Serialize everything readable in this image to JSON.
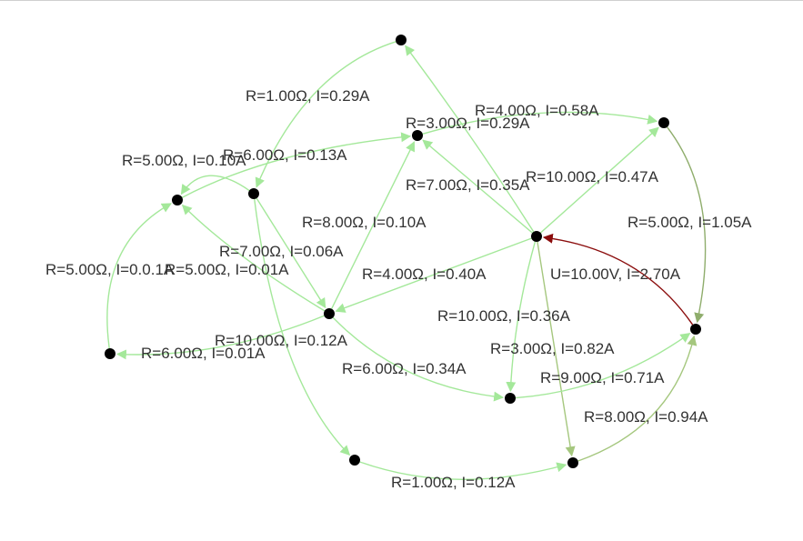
{
  "colors": {
    "edge_light": "#a4e89a",
    "edge_medium": "#a5c77e",
    "edge_olive": "#8fad6c",
    "source": "#8b0d0d",
    "node": "#000000",
    "label": "#333333"
  },
  "nodes": [
    {
      "id": "n1"
    },
    {
      "id": "n2"
    },
    {
      "id": "n3"
    },
    {
      "id": "n4"
    },
    {
      "id": "n5"
    },
    {
      "id": "n6"
    },
    {
      "id": "n7"
    },
    {
      "id": "n8"
    },
    {
      "id": "n9"
    },
    {
      "id": "n10"
    },
    {
      "id": "n11"
    },
    {
      "id": "n12"
    },
    {
      "id": "n13"
    }
  ],
  "edges": [
    {
      "from": "n1",
      "to": "n4",
      "label": "R=1.00Ω, I=0.29A",
      "tone": "light"
    },
    {
      "from": "n7",
      "to": "n1",
      "label": "R=7.00Ω, I=0.35A",
      "tone": "light"
    },
    {
      "from": "n7",
      "to": "n2",
      "label": "R=3.00Ω, I=0.29A",
      "tone": "light"
    },
    {
      "from": "n7",
      "to": "n6",
      "label": "R=10.00Ω, I=0.47A",
      "tone": "light"
    },
    {
      "from": "n3",
      "to": "n2",
      "label": "R=6.00Ω, I=0.13A",
      "tone": "light"
    },
    {
      "from": "n2",
      "to": "n6",
      "label": "R=4.00Ω, I=0.58A",
      "tone": "light"
    },
    {
      "from": "n4",
      "to": "n3",
      "label": "R=5.00Ω, I=0.10A",
      "tone": "light"
    },
    {
      "from": "n4",
      "to": "n5",
      "label": "R=7.00Ω, I=0.06A",
      "tone": "light"
    },
    {
      "from": "n5",
      "to": "n2",
      "label": "R=8.00Ω, I=0.10A",
      "tone": "light"
    },
    {
      "from": "n5",
      "to": "n3",
      "label": "R=5.00Ω, I=0.01A",
      "tone": "light"
    },
    {
      "from": "n8",
      "to": "n3",
      "label": "R=5.00Ω, I=0.0.1A",
      "tone": "light"
    },
    {
      "from": "n7",
      "to": "n5",
      "label": "R=4.00Ω, I=0.40A",
      "tone": "light"
    },
    {
      "from": "n6",
      "to": "n9",
      "label": "R=5.00Ω, I=1.05A",
      "tone": "olive"
    },
    {
      "from": "n9",
      "to": "n7",
      "label": "U=10.00V, I=2.70A",
      "tone": "source"
    },
    {
      "from": "n5",
      "to": "n8",
      "label": "R=6.00Ω, I=0.01A",
      "tone": "light"
    },
    {
      "from": "n4",
      "to": "n11",
      "label": "R=10.00Ω, I=0.12A",
      "tone": "light"
    },
    {
      "from": "n5",
      "to": "n10",
      "label": "R=6.00Ω, I=0.34A",
      "tone": "light"
    },
    {
      "from": "n7",
      "to": "n10",
      "label": "R=10.00Ω, I=0.36A",
      "tone": "light"
    },
    {
      "from": "n7",
      "to": "n12",
      "label": "R=3.00Ω, I=0.82A",
      "tone": "medium"
    },
    {
      "from": "n10",
      "to": "n9",
      "label": "R=9.00Ω, I=0.71A",
      "tone": "light"
    },
    {
      "from": "n12",
      "to": "n9",
      "label": "R=8.00Ω, I=0.94A",
      "tone": "medium"
    },
    {
      "from": "n11",
      "to": "n12",
      "label": "R=1.00Ω, I=0.12A",
      "tone": "light"
    }
  ]
}
